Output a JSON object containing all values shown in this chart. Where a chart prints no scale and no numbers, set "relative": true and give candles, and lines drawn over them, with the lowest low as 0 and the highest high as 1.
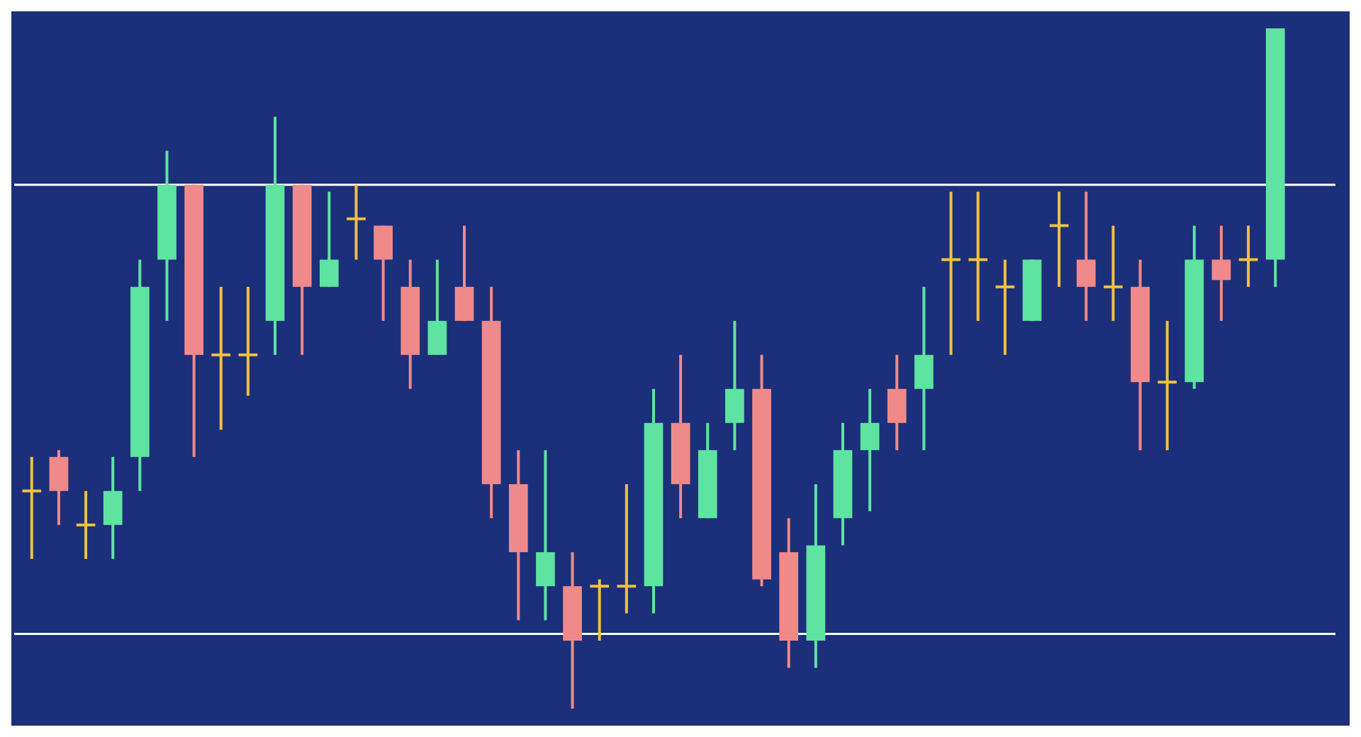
{
  "chart_data": {
    "type": "candlestick",
    "relative": true,
    "categories": [
      null,
      null,
      null,
      null,
      null,
      null,
      null,
      null,
      null,
      null,
      null,
      null,
      null,
      null,
      null,
      null,
      null,
      null,
      null,
      null,
      null,
      null,
      null,
      null,
      null,
      null,
      null,
      null,
      null,
      null,
      null,
      null,
      null,
      null,
      null,
      null,
      null,
      null,
      null,
      null,
      null,
      null,
      null,
      null,
      null,
      null,
      null
    ],
    "ohlc": [
      [
        0.32,
        0.37,
        0.22,
        0.32
      ],
      [
        0.37,
        0.38,
        0.27,
        0.32
      ],
      [
        0.27,
        0.32,
        0.22,
        0.27
      ],
      [
        0.27,
        0.37,
        0.22,
        0.32
      ],
      [
        0.37,
        0.66,
        0.32,
        0.62
      ],
      [
        0.66,
        0.82,
        0.57,
        0.77
      ],
      [
        0.77,
        0.77,
        0.37,
        0.52
      ],
      [
        0.52,
        0.62,
        0.41,
        0.52
      ],
      [
        0.52,
        0.62,
        0.46,
        0.52
      ],
      [
        0.57,
        0.87,
        0.52,
        0.77
      ],
      [
        0.77,
        0.77,
        0.52,
        0.62
      ],
      [
        0.62,
        0.76,
        0.62,
        0.66
      ],
      [
        0.72,
        0.77,
        0.66,
        0.72
      ],
      [
        0.71,
        0.71,
        0.57,
        0.66
      ],
      [
        0.62,
        0.66,
        0.47,
        0.52
      ],
      [
        0.52,
        0.66,
        0.52,
        0.57
      ],
      [
        0.62,
        0.71,
        0.57,
        0.57
      ],
      [
        0.57,
        0.62,
        0.28,
        0.33
      ],
      [
        0.33,
        0.38,
        0.13,
        0.23
      ],
      [
        0.18,
        0.38,
        0.13,
        0.23
      ],
      [
        0.18,
        0.23,
        0,
        0.1
      ],
      [
        0.18,
        0.19,
        0.1,
        0.18
      ],
      [
        0.18,
        0.33,
        0.14,
        0.18
      ],
      [
        0.18,
        0.47,
        0.14,
        0.42
      ],
      [
        0.42,
        0.52,
        0.28,
        0.33
      ],
      [
        0.28,
        0.42,
        0.28,
        0.38
      ],
      [
        0.42,
        0.57,
        0.38,
        0.47
      ],
      [
        0.47,
        0.52,
        0.18,
        0.19
      ],
      [
        0.23,
        0.28,
        0.06,
        0.1
      ],
      [
        0.1,
        0.33,
        0.06,
        0.24
      ],
      [
        0.28,
        0.42,
        0.24,
        0.38
      ],
      [
        0.38,
        0.47,
        0.29,
        0.42
      ],
      [
        0.47,
        0.52,
        0.38,
        0.42
      ],
      [
        0.47,
        0.62,
        0.38,
        0.52
      ],
      [
        0.66,
        0.76,
        0.52,
        0.66
      ],
      [
        0.66,
        0.76,
        0.57,
        0.66
      ],
      [
        0.62,
        0.66,
        0.52,
        0.62
      ],
      [
        0.57,
        0.66,
        0.57,
        0.66
      ],
      [
        0.71,
        0.76,
        0.62,
        0.71
      ],
      [
        0.66,
        0.76,
        0.57,
        0.62
      ],
      [
        0.62,
        0.71,
        0.57,
        0.62
      ],
      [
        0.62,
        0.66,
        0.38,
        0.48
      ],
      [
        0.48,
        0.57,
        0.38,
        0.48
      ],
      [
        0.48,
        0.71,
        0.47,
        0.66
      ],
      [
        0.66,
        0.71,
        0.57,
        0.63
      ],
      [
        0.66,
        0.71,
        0.62,
        0.66
      ],
      [
        0.66,
        1,
        0.62,
        1
      ]
    ],
    "colors": [
      "#f0c040",
      "#f08a8a",
      "#f0c040",
      "#5fe3a0",
      "#5fe3a0",
      "#5fe3a0",
      "#f08a8a",
      "#f0c040",
      "#f0c040",
      "#5fe3a0",
      "#f08a8a",
      "#5fe3a0",
      "#f0c040",
      "#f08a8a",
      "#f08a8a",
      "#5fe3a0",
      "#f08a8a",
      "#f08a8a",
      "#f08a8a",
      "#5fe3a0",
      "#f08a8a",
      "#f0c040",
      "#f0c040",
      "#5fe3a0",
      "#f08a8a",
      "#5fe3a0",
      "#5fe3a0",
      "#f08a8a",
      "#f08a8a",
      "#5fe3a0",
      "#5fe3a0",
      "#5fe3a0",
      "#f08a8a",
      "#5fe3a0",
      "#f0c040",
      "#f0c040",
      "#f0c040",
      "#5fe3a0",
      "#f0c040",
      "#f08a8a",
      "#f0c040",
      "#f08a8a",
      "#f0c040",
      "#5fe3a0",
      "#f08a8a",
      "#f0c040",
      "#5fe3a0"
    ],
    "ref_lines": [
      {
        "axis": "y",
        "value": 0.77,
        "color": "#ffffff"
      },
      {
        "axis": "y",
        "value": 0.11,
        "color": "#ffffff"
      }
    ]
  }
}
